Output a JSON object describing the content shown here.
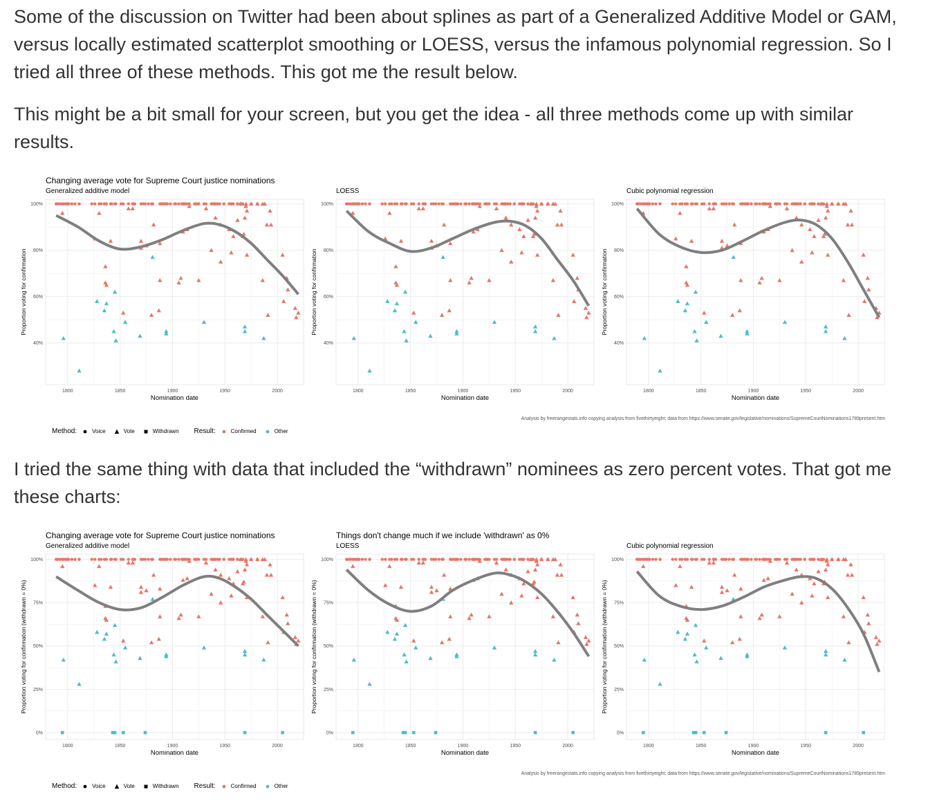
{
  "text": {
    "p1": "Some of the discussion on Twitter had been about splines as part of a Generalized Additive Model or GAM, versus locally estimated scatterplot smoothing or LOESS, versus the infamous polynomial regression. So I tried all three of these methods. This got me the result below.",
    "p2": "This might be a bit small for your screen, but you get the idea - all three methods come up with similar results.",
    "p3": "I tried the same thing with data that included the “withdrawn” nominees as zero percent votes. That got me these charts:"
  },
  "figures": [
    {
      "credit": "Analysis by freerangestats.info copying analysis from fivethirtyeight; data from https://www.senate.gov/legislative/nominations/SupremeCourtNominations1789present.htm",
      "legend": {
        "method_label": "Method:",
        "methods": [
          "Voice",
          "Vote",
          "Withdrawn"
        ],
        "result_label": "Result:",
        "results": [
          "Confirmed",
          "Other"
        ]
      },
      "panels": [
        {
          "title": "Changing average vote for Supreme Court justice nominations",
          "subtitle": "Generalized additive model",
          "xlabel": "Nomination date",
          "ylabel": "Proportion voting for confirmation"
        },
        {
          "title": "",
          "subtitle": "LOESS",
          "xlabel": "Nomination date",
          "ylabel": "Proportion voting for confirmation"
        },
        {
          "title": "",
          "subtitle": "Cubic polynomial regression",
          "xlabel": "Nomination date",
          "ylabel": "Proportion voting for confirmation"
        }
      ]
    },
    {
      "credit": "Analysis by freerangestats.info copying analysis from fivethirtyeight; data from https://www.senate.gov/legislative/nominations/SupremeCourtNominations1789present.htm",
      "legend": {
        "method_label": "Method:",
        "methods": [
          "Voice",
          "Vote",
          "Withdrawn"
        ],
        "result_label": "Result:",
        "results": [
          "Confirmed",
          "Other"
        ]
      },
      "panels": [
        {
          "title": "Changing average vote for Supreme Court justice nominations",
          "subtitle": "Generalized additive model",
          "xlabel": "Nomination date",
          "ylabel": "Proportion voting for confirmation (withdrawn = 0%)"
        },
        {
          "title": "Things don't change much if we include 'withdrawn' as 0%",
          "subtitle": "LOESS",
          "xlabel": "Nomination date",
          "ylabel": "Proportion voting for confirmation (withdrawn = 0%)"
        },
        {
          "title": "",
          "subtitle": "Cubic polynomial regression",
          "xlabel": "Nomination date",
          "ylabel": "Proportion voting for confirmation (withdrawn = 0%)"
        }
      ]
    }
  ],
  "colors": {
    "confirmed": "#E4776A",
    "other": "#4DBDC6",
    "smooth": "#7F7F7F",
    "grid": "#EBEBEB"
  },
  "chart_data": [
    {
      "type": "scatter",
      "xlim": [
        1779,
        2025
      ],
      "ylim": [
        0.22,
        1.02
      ],
      "xticks": [
        1800,
        1850,
        1900,
        1950,
        2000
      ],
      "yticks": [
        0.4,
        0.6,
        0.8,
        1.0
      ],
      "yticklabels": [
        "40%",
        "60%",
        "80%",
        "100%"
      ],
      "voice_confirmed_x": [
        1789,
        1790,
        1791,
        1793,
        1795,
        1796,
        1798,
        1799,
        1800,
        1801,
        1804,
        1807,
        1811,
        1811,
        1823,
        1826,
        1830,
        1832,
        1835,
        1837,
        1841,
        1842,
        1845,
        1846,
        1851,
        1853,
        1858,
        1862,
        1862,
        1863,
        1864,
        1870,
        1872,
        1874,
        1877,
        1880,
        1881,
        1881,
        1888,
        1889,
        1890,
        1892,
        1893,
        1894,
        1895,
        1898,
        1902,
        1903,
        1906,
        1909,
        1910,
        1910,
        1910,
        1911,
        1912,
        1914,
        1916,
        1921,
        1922,
        1922,
        1923,
        1925,
        1930,
        1932,
        1937,
        1938,
        1939,
        1940,
        1941,
        1941,
        1943,
        1945,
        1949,
        1949,
        1954,
        1956,
        1956,
        1957,
        1958,
        1962,
        1962,
        1965,
        1967,
        1975,
        1981
      ],
      "vote": [
        {
          "x": 1795,
          "y": 0.96,
          "r": "confirmed"
        },
        {
          "x": 1796,
          "y": 0.42,
          "r": "other"
        },
        {
          "x": 1811,
          "y": 0.28,
          "r": "other"
        },
        {
          "x": 1826,
          "y": 0.85,
          "r": "confirmed"
        },
        {
          "x": 1828,
          "y": 0.58,
          "r": "other"
        },
        {
          "x": 1830,
          "y": 0.96,
          "r": "confirmed"
        },
        {
          "x": 1835,
          "y": 0.54,
          "r": "other"
        },
        {
          "x": 1836,
          "y": 0.73,
          "r": "confirmed"
        },
        {
          "x": 1836,
          "y": 0.66,
          "r": "confirmed"
        },
        {
          "x": 1837,
          "y": 0.65,
          "r": "confirmed"
        },
        {
          "x": 1837,
          "y": 0.57,
          "r": "other"
        },
        {
          "x": 1841,
          "y": 0.84,
          "r": "confirmed"
        },
        {
          "x": 1844,
          "y": 0.45,
          "r": "other"
        },
        {
          "x": 1845,
          "y": 0.62,
          "r": "other"
        },
        {
          "x": 1846,
          "y": 0.41,
          "r": "other"
        },
        {
          "x": 1853,
          "y": 0.53,
          "r": "confirmed"
        },
        {
          "x": 1855,
          "y": 0.49,
          "r": "other"
        },
        {
          "x": 1858,
          "y": 0.98,
          "r": "confirmed"
        },
        {
          "x": 1862,
          "y": 0.98,
          "r": "confirmed"
        },
        {
          "x": 1869,
          "y": 0.43,
          "r": "other"
        },
        {
          "x": 1870,
          "y": 0.84,
          "r": "confirmed"
        },
        {
          "x": 1870,
          "y": 0.81,
          "r": "confirmed"
        },
        {
          "x": 1875,
          "y": 0.82,
          "r": "confirmed"
        },
        {
          "x": 1880,
          "y": 0.52,
          "r": "confirmed"
        },
        {
          "x": 1881,
          "y": 0.77,
          "r": "other"
        },
        {
          "x": 1882,
          "y": 0.91,
          "r": "confirmed"
        },
        {
          "x": 1887,
          "y": 0.54,
          "r": "confirmed"
        },
        {
          "x": 1888,
          "y": 0.67,
          "r": "confirmed"
        },
        {
          "x": 1888,
          "y": 0.83,
          "r": "confirmed"
        },
        {
          "x": 1894,
          "y": 0.45,
          "r": "other"
        },
        {
          "x": 1894,
          "y": 0.44,
          "r": "other"
        },
        {
          "x": 1906,
          "y": 0.66,
          "r": "confirmed"
        },
        {
          "x": 1908,
          "y": 0.68,
          "r": "confirmed"
        },
        {
          "x": 1910,
          "y": 0.88,
          "r": "confirmed"
        },
        {
          "x": 1914,
          "y": 0.89,
          "r": "confirmed"
        },
        {
          "x": 1916,
          "y": 0.99,
          "r": "confirmed"
        },
        {
          "x": 1925,
          "y": 0.67,
          "r": "confirmed"
        },
        {
          "x": 1930,
          "y": 0.49,
          "r": "other"
        },
        {
          "x": 1932,
          "y": 0.98,
          "r": "confirmed"
        },
        {
          "x": 1937,
          "y": 0.8,
          "r": "confirmed"
        },
        {
          "x": 1941,
          "y": 0.94,
          "r": "confirmed"
        },
        {
          "x": 1946,
          "y": 0.91,
          "r": "confirmed"
        },
        {
          "x": 1946,
          "y": 0.75,
          "r": "confirmed"
        },
        {
          "x": 1954,
          "y": 0.89,
          "r": "confirmed"
        },
        {
          "x": 1956,
          "y": 0.79,
          "r": "confirmed"
        },
        {
          "x": 1958,
          "y": 0.86,
          "r": "confirmed"
        },
        {
          "x": 1962,
          "y": 0.93,
          "r": "confirmed"
        },
        {
          "x": 1965,
          "y": 1.0,
          "r": "confirmed"
        },
        {
          "x": 1967,
          "y": 0.86,
          "r": "confirmed"
        },
        {
          "x": 1968,
          "y": 0.87,
          "r": "confirmed"
        },
        {
          "x": 1969,
          "y": 0.45,
          "r": "other"
        },
        {
          "x": 1969,
          "y": 0.47,
          "r": "other"
        },
        {
          "x": 1969,
          "y": 0.94,
          "r": "confirmed"
        },
        {
          "x": 1970,
          "y": 0.99,
          "r": "confirmed"
        },
        {
          "x": 1970,
          "y": 1.0,
          "r": "confirmed"
        },
        {
          "x": 1971,
          "y": 0.97,
          "r": "confirmed"
        },
        {
          "x": 1971,
          "y": 0.78,
          "r": "confirmed"
        },
        {
          "x": 1975,
          "y": 1.0,
          "r": "confirmed"
        },
        {
          "x": 1981,
          "y": 1.0,
          "r": "confirmed"
        },
        {
          "x": 1986,
          "y": 1.0,
          "r": "confirmed"
        },
        {
          "x": 1986,
          "y": 0.67,
          "r": "confirmed"
        },
        {
          "x": 1987,
          "y": 0.42,
          "r": "other"
        },
        {
          "x": 1988,
          "y": 1.0,
          "r": "confirmed"
        },
        {
          "x": 1990,
          "y": 0.91,
          "r": "confirmed"
        },
        {
          "x": 1991,
          "y": 0.52,
          "r": "confirmed"
        },
        {
          "x": 1993,
          "y": 0.97,
          "r": "confirmed"
        },
        {
          "x": 1994,
          "y": 0.91,
          "r": "confirmed"
        },
        {
          "x": 2005,
          "y": 0.78,
          "r": "confirmed"
        },
        {
          "x": 2006,
          "y": 0.58,
          "r": "confirmed"
        },
        {
          "x": 2009,
          "y": 0.68,
          "r": "confirmed"
        },
        {
          "x": 2010,
          "y": 0.63,
          "r": "confirmed"
        },
        {
          "x": 2017,
          "y": 0.55,
          "r": "confirmed"
        },
        {
          "x": 2018,
          "y": 0.51,
          "r": "confirmed"
        },
        {
          "x": 2020,
          "y": 0.53,
          "r": "confirmed"
        }
      ],
      "smooths": [
        {
          "method": "Generalized additive model",
          "x": [
            1789,
            1810,
            1830,
            1850,
            1870,
            1890,
            1910,
            1930,
            1945,
            1960,
            1975,
            1990,
            2005,
            2020
          ],
          "y": [
            0.95,
            0.9,
            0.84,
            0.805,
            0.815,
            0.845,
            0.885,
            0.915,
            0.91,
            0.88,
            0.83,
            0.76,
            0.69,
            0.61
          ]
        },
        {
          "method": "LOESS",
          "x": [
            1789,
            1810,
            1830,
            1850,
            1870,
            1890,
            1910,
            1930,
            1945,
            1960,
            1975,
            1990,
            2005,
            2020
          ],
          "y": [
            0.97,
            0.88,
            0.83,
            0.795,
            0.81,
            0.85,
            0.89,
            0.92,
            0.925,
            0.905,
            0.85,
            0.76,
            0.67,
            0.56
          ]
        },
        {
          "method": "Cubic polynomial regression",
          "x": [
            1789,
            1810,
            1830,
            1850,
            1870,
            1890,
            1910,
            1930,
            1945,
            1960,
            1975,
            1990,
            2005,
            2020
          ],
          "y": [
            0.98,
            0.87,
            0.815,
            0.79,
            0.8,
            0.84,
            0.885,
            0.92,
            0.93,
            0.91,
            0.85,
            0.75,
            0.63,
            0.51
          ]
        }
      ]
    },
    {
      "type": "scatter",
      "xlim": [
        1779,
        2025
      ],
      "ylim": [
        -0.04,
        1.03
      ],
      "xticks": [
        1800,
        1850,
        1900,
        1950,
        2000
      ],
      "yticks": [
        0,
        0.25,
        0.5,
        0.75,
        1.0
      ],
      "yticklabels": [
        "0%",
        "25%",
        "50%",
        "75%",
        "100%"
      ],
      "withdrawn_x": [
        1795,
        1843,
        1845,
        1853,
        1874,
        1969,
        2005
      ],
      "smooths": [
        {
          "method": "Generalized additive model",
          "x": [
            1789,
            1810,
            1830,
            1850,
            1870,
            1890,
            1910,
            1930,
            1945,
            1960,
            1975,
            1990,
            2005,
            2020
          ],
          "y": [
            0.9,
            0.82,
            0.75,
            0.71,
            0.72,
            0.78,
            0.85,
            0.9,
            0.89,
            0.84,
            0.77,
            0.68,
            0.59,
            0.5
          ]
        },
        {
          "method": "LOESS",
          "x": [
            1789,
            1810,
            1830,
            1850,
            1870,
            1890,
            1910,
            1930,
            1945,
            1960,
            1975,
            1990,
            2005,
            2020
          ],
          "y": [
            0.94,
            0.82,
            0.74,
            0.7,
            0.73,
            0.82,
            0.88,
            0.92,
            0.91,
            0.87,
            0.8,
            0.7,
            0.58,
            0.44
          ]
        },
        {
          "method": "Cubic polynomial regression",
          "x": [
            1789,
            1810,
            1830,
            1850,
            1870,
            1890,
            1910,
            1930,
            1945,
            1960,
            1975,
            1990,
            2005,
            2020
          ],
          "y": [
            0.93,
            0.79,
            0.73,
            0.71,
            0.73,
            0.78,
            0.84,
            0.88,
            0.9,
            0.89,
            0.83,
            0.72,
            0.57,
            0.35
          ]
        }
      ]
    }
  ]
}
